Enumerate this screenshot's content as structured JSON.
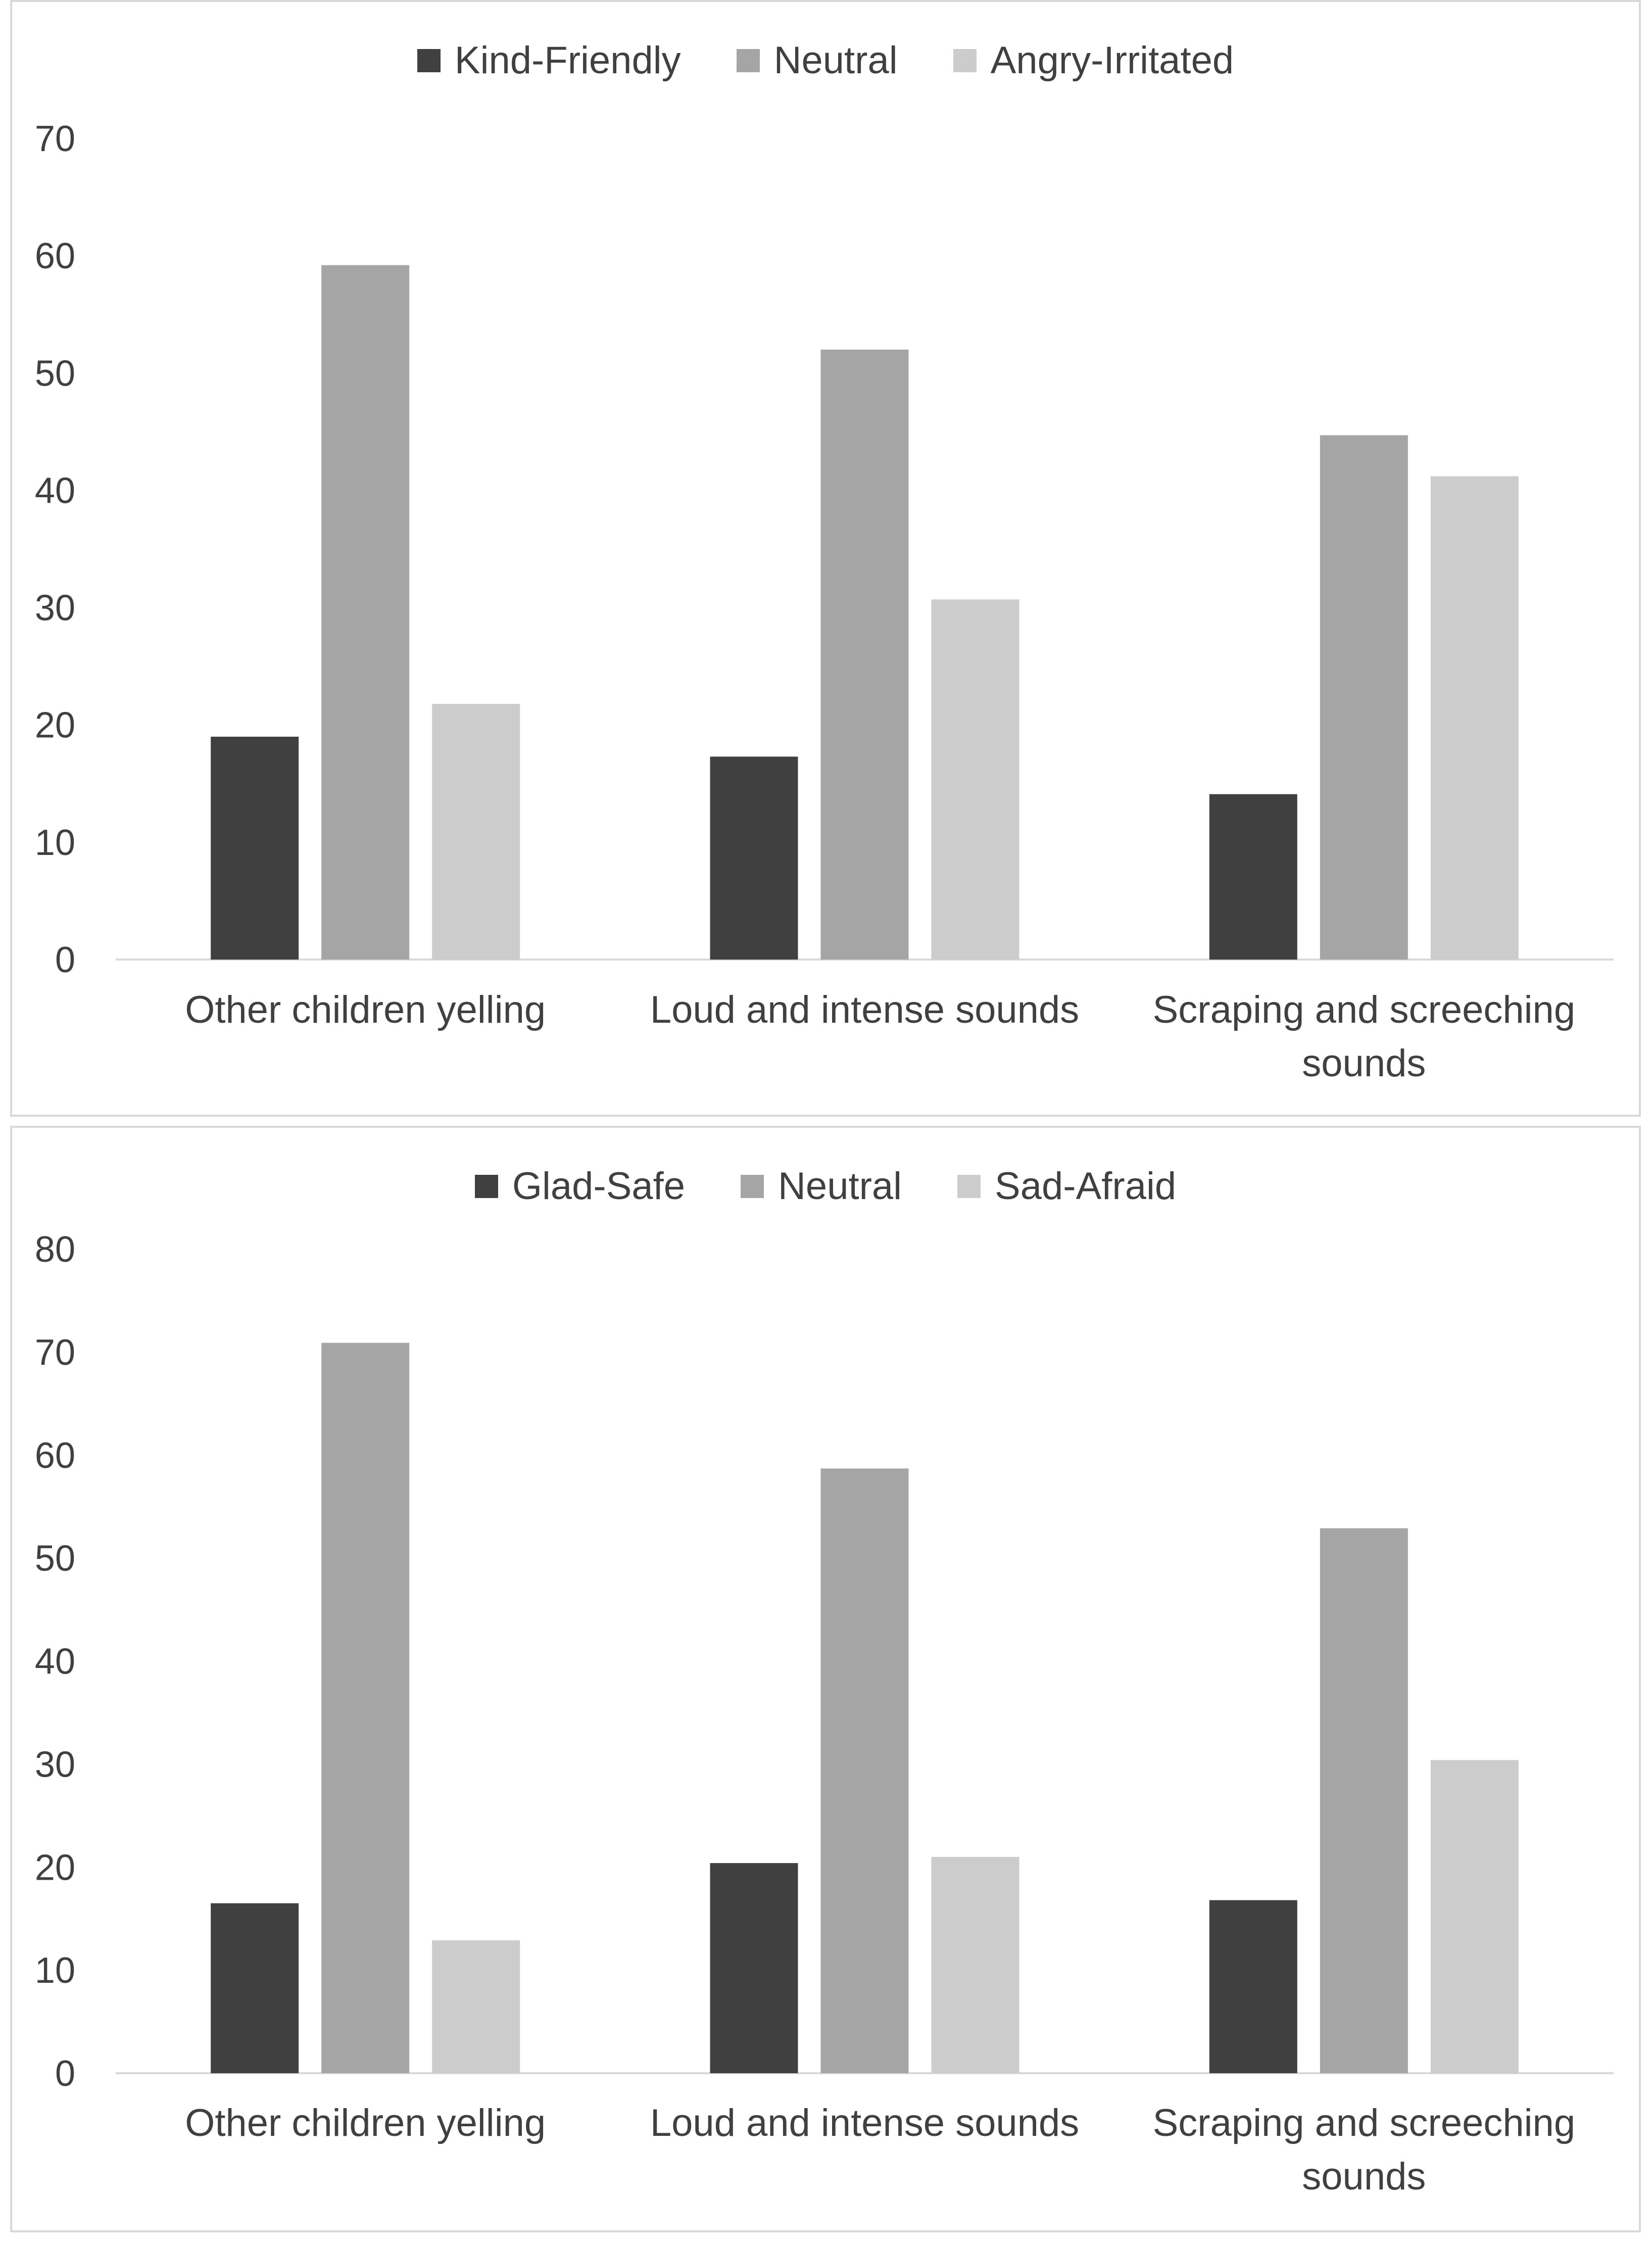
{
  "chart_data": [
    {
      "type": "bar",
      "title": "",
      "xlabel": "",
      "ylabel": "",
      "categories": [
        [
          "Other children yelling"
        ],
        [
          "Loud and intense sounds"
        ],
        [
          "Scraping and screeching",
          "sounds"
        ]
      ],
      "series": [
        {
          "name": "Kind-Friendly",
          "color": "#404040",
          "values": [
            19,
            17.3,
            14.1
          ]
        },
        {
          "name": "Neutral",
          "color": "#a5a5a5",
          "values": [
            59.2,
            52,
            44.7
          ]
        },
        {
          "name": "Angry-Irritated",
          "color": "#cccccc",
          "values": [
            21.8,
            30.7,
            41.2
          ]
        }
      ],
      "yticks": [
        "0",
        "10",
        "20",
        "30",
        "40",
        "50",
        "60",
        "70"
      ],
      "ylim": [
        0,
        70
      ],
      "grid": false,
      "legend": "top-center"
    },
    {
      "type": "bar",
      "title": "",
      "xlabel": "",
      "ylabel": "",
      "categories": [
        [
          "Other children yelling"
        ],
        [
          "Loud and intense sounds"
        ],
        [
          "Scraping and screeching",
          "sounds"
        ]
      ],
      "series": [
        {
          "name": "Glad-Safe",
          "color": "#404040",
          "values": [
            16.5,
            20.4,
            16.8
          ]
        },
        {
          "name": "Neutral",
          "color": "#a5a5a5",
          "values": [
            70.9,
            58.7,
            52.9
          ]
        },
        {
          "name": "Sad-Afraid",
          "color": "#cccccc",
          "values": [
            12.9,
            21,
            30.4
          ]
        }
      ],
      "yticks": [
        "0",
        "10",
        "20",
        "30",
        "40",
        "50",
        "60",
        "70",
        "80"
      ],
      "ylim": [
        0,
        80
      ],
      "grid": false,
      "legend": "top-center"
    }
  ]
}
